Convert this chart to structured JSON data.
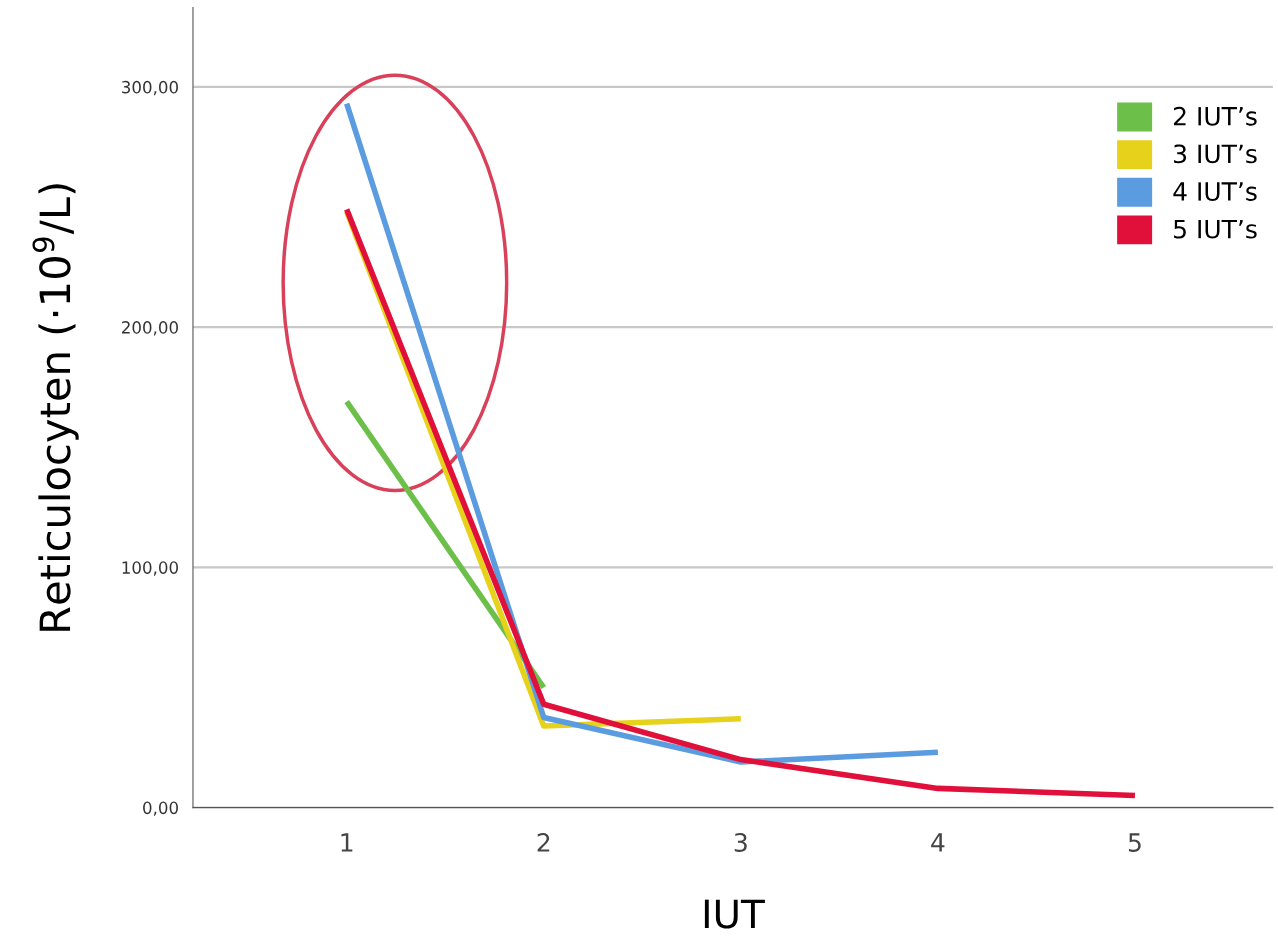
{
  "chart_data": {
    "type": "line",
    "xlabel": "IUT",
    "ylabel": "Reticulocyten (·10$^{9}$/L)",
    "categories": [
      "1",
      "2",
      "3",
      "4",
      "5"
    ],
    "ylim": [
      0,
      333
    ],
    "yticks": [
      {
        "value": 0,
        "label": "0,00"
      },
      {
        "value": 100,
        "label": "100,00"
      },
      {
        "value": 200,
        "label": "200,00"
      },
      {
        "value": 300,
        "label": "300,00"
      }
    ],
    "grid": "y",
    "legend": "top right",
    "line_style": "solid",
    "series": [
      {
        "name": "2 IUT’s",
        "color": "#6cc04a",
        "values": [
          169,
          50,
          null,
          null,
          null
        ]
      },
      {
        "name": "3 IUT’s",
        "color": "#e6d21a",
        "values": [
          248,
          34,
          37,
          null,
          null
        ]
      },
      {
        "name": "4 IUT’s",
        "color": "#5b9be0",
        "values": [
          293,
          37.5,
          19,
          23,
          null
        ]
      },
      {
        "name": "5 IUT’s",
        "color": "#e0103a",
        "values": [
          249,
          43,
          20,
          8,
          5
        ]
      }
    ]
  }
}
